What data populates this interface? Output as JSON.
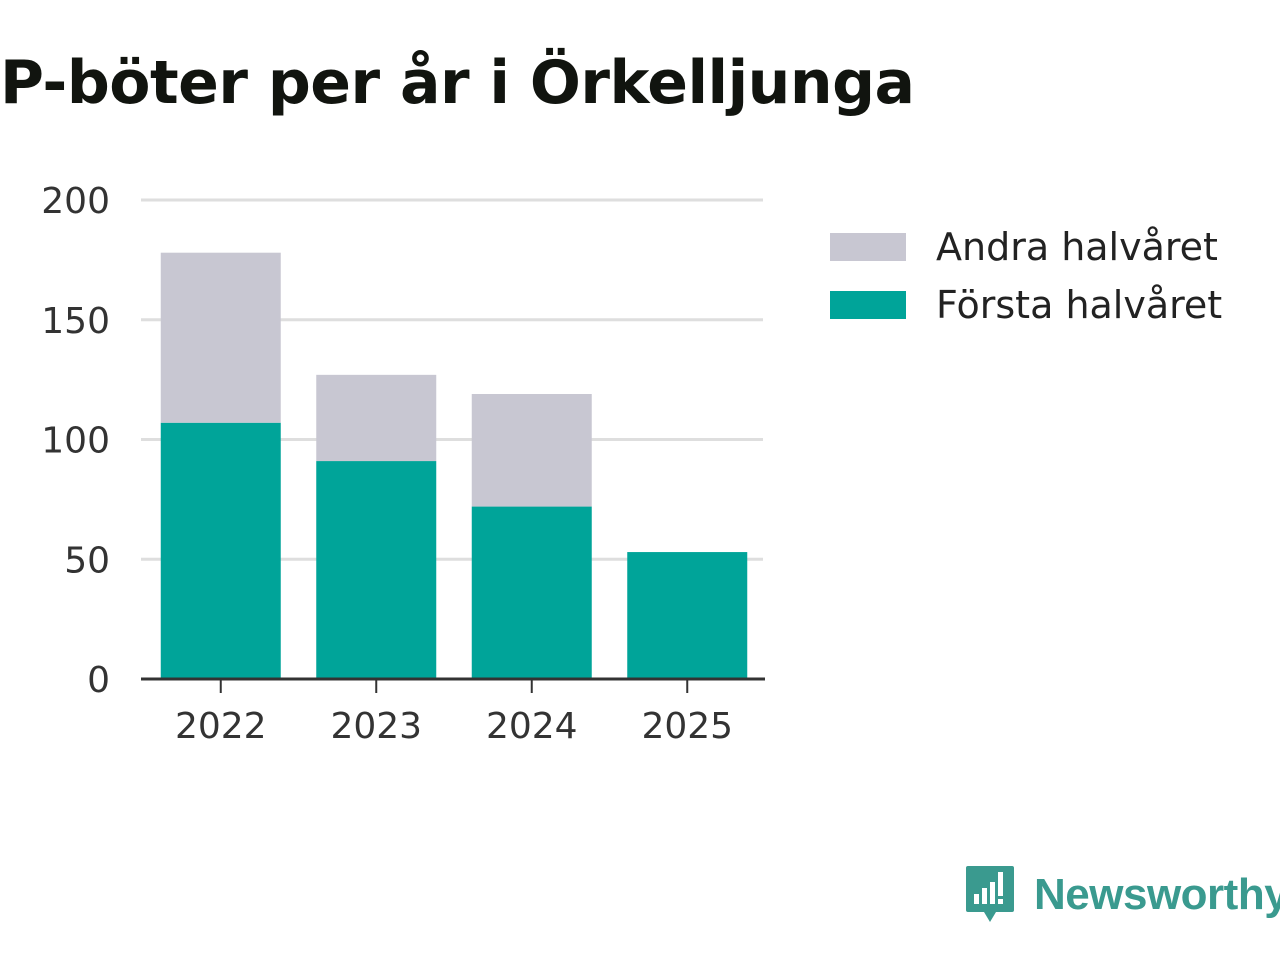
{
  "chart_data": {
    "type": "bar",
    "stacked": true,
    "title": "P-böter per år i Örkelljunga",
    "categories": [
      "2022",
      "2023",
      "2024",
      "2025"
    ],
    "series": [
      {
        "name": "Första halvåret",
        "values": [
          107,
          91,
          72,
          53
        ],
        "color": "#00a499"
      },
      {
        "name": "Andra halvåret",
        "values": [
          71,
          36,
          47,
          0
        ],
        "color": "#c8c7d2"
      }
    ],
    "ylim": [
      0,
      200
    ],
    "yticks": [
      0,
      50,
      100,
      150,
      200
    ],
    "xlabel": "",
    "ylabel": "",
    "grid": true,
    "legend": "top-right",
    "legend_order": [
      "Andra halvåret",
      "Första halvåret"
    ]
  },
  "brand": {
    "name": "Newsworthy",
    "color": "#3a9a8f"
  }
}
